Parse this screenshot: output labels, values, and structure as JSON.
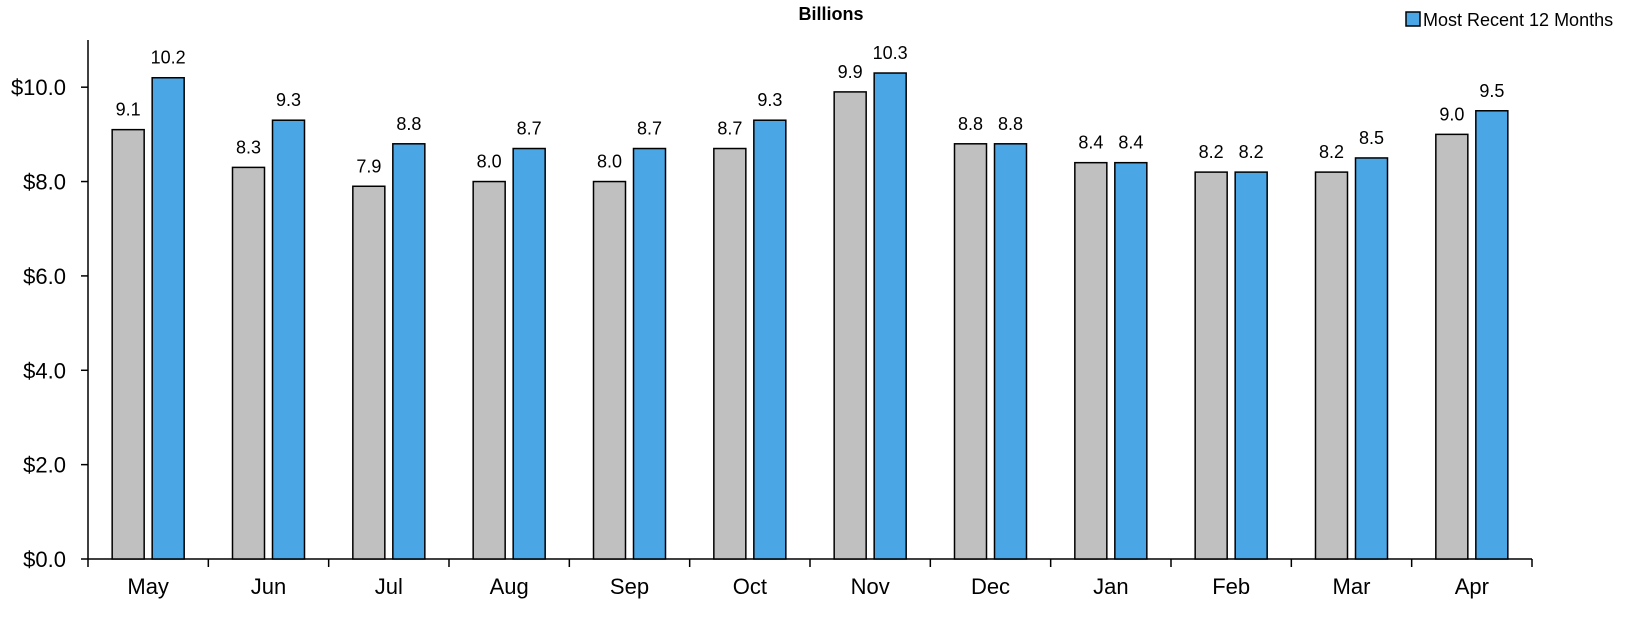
{
  "chart_data": {
    "type": "bar",
    "title": "Billions",
    "categories": [
      "May",
      "Jun",
      "Jul",
      "Aug",
      "Sep",
      "Oct",
      "Nov",
      "Dec",
      "Jan",
      "Feb",
      "Mar",
      "Apr"
    ],
    "series": [
      {
        "values": [
          9.1,
          8.3,
          7.9,
          8.0,
          8.0,
          8.7,
          9.9,
          8.8,
          8.4,
          8.2,
          8.2,
          9.0
        ],
        "labels": [
          "9.1",
          "8.3",
          "7.9",
          "8.0",
          "8.0",
          "8.7",
          "9.9",
          "8.8",
          "8.4",
          "8.2",
          "8.2",
          "9.0"
        ],
        "color": "#c0c0c0"
      },
      {
        "name": "Most Recent 12 Months",
        "values": [
          10.2,
          9.3,
          8.8,
          8.7,
          8.7,
          9.3,
          10.3,
          8.8,
          8.4,
          8.2,
          8.5,
          9.5
        ],
        "labels": [
          "10.2",
          "9.3",
          "8.8",
          "8.7",
          "8.7",
          "9.3",
          "10.3",
          "8.8",
          "8.4",
          "8.2",
          "8.5",
          "9.5"
        ],
        "color": "#4ba6e6"
      }
    ],
    "ylim": [
      0,
      11
    ],
    "yticks": [
      0,
      2,
      4,
      6,
      8,
      10
    ],
    "ytick_labels": [
      "$0.0",
      "$2.0",
      "$4.0",
      "$6.0",
      "$8.0",
      "$10.0"
    ],
    "legend_position": "top-right",
    "grid": false
  }
}
